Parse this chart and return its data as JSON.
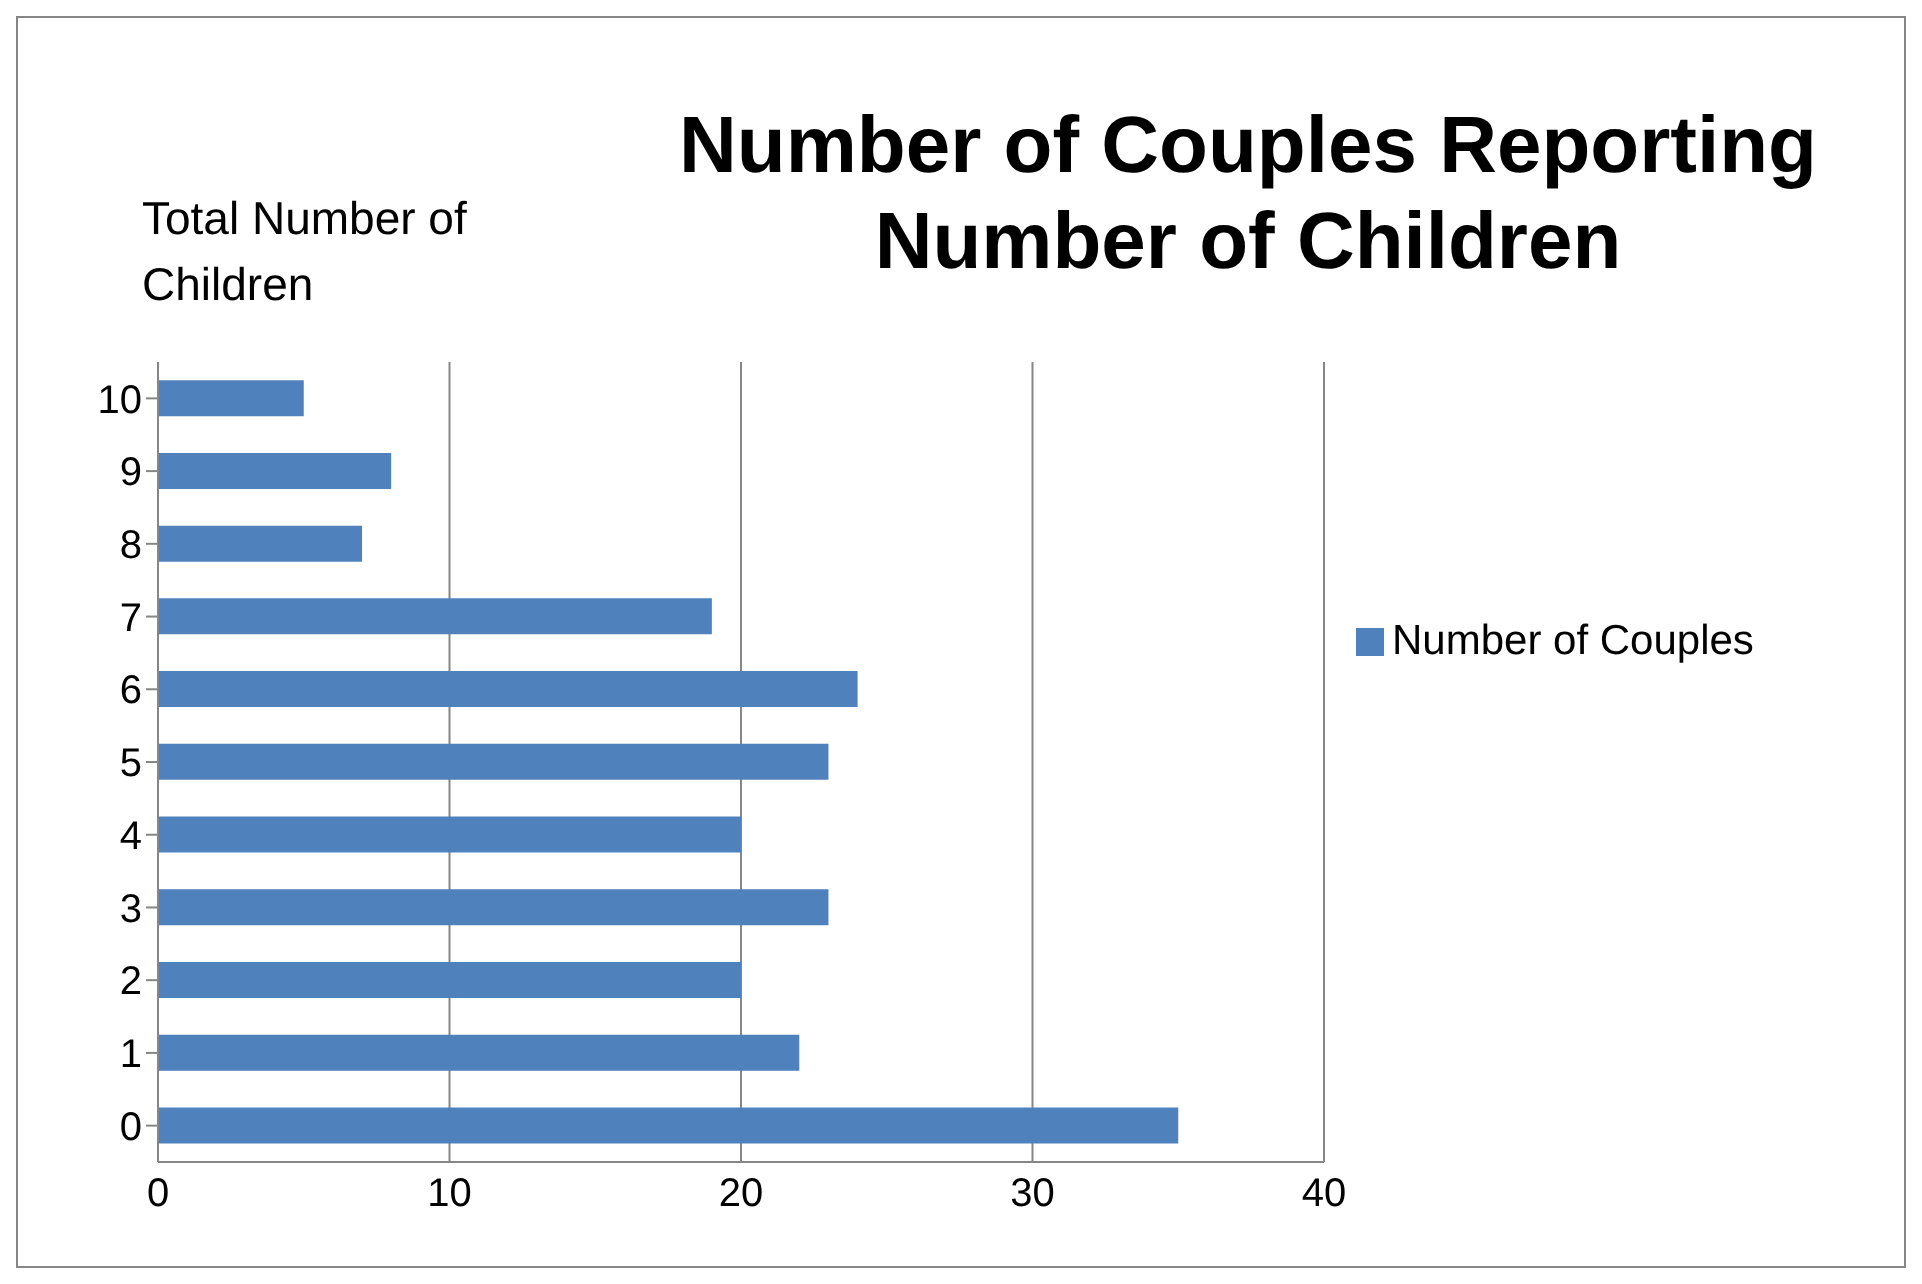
{
  "chart_data": {
    "type": "bar",
    "orientation": "horizontal",
    "title": "Number of Couples Reporting Number of Children",
    "ylabel": "Total Number of Children",
    "categories": [
      "10",
      "9",
      "8",
      "7",
      "6",
      "5",
      "4",
      "3",
      "2",
      "1",
      "0"
    ],
    "series": [
      {
        "name": "Number of Couples",
        "color": "#4f81bd",
        "values": [
          5,
          8,
          7,
          19,
          24,
          23,
          20,
          23,
          20,
          22,
          35
        ]
      }
    ],
    "xlim": [
      0,
      40
    ],
    "xticks": [
      0,
      10,
      20,
      30,
      40
    ],
    "grid": "x",
    "legend": "right"
  }
}
